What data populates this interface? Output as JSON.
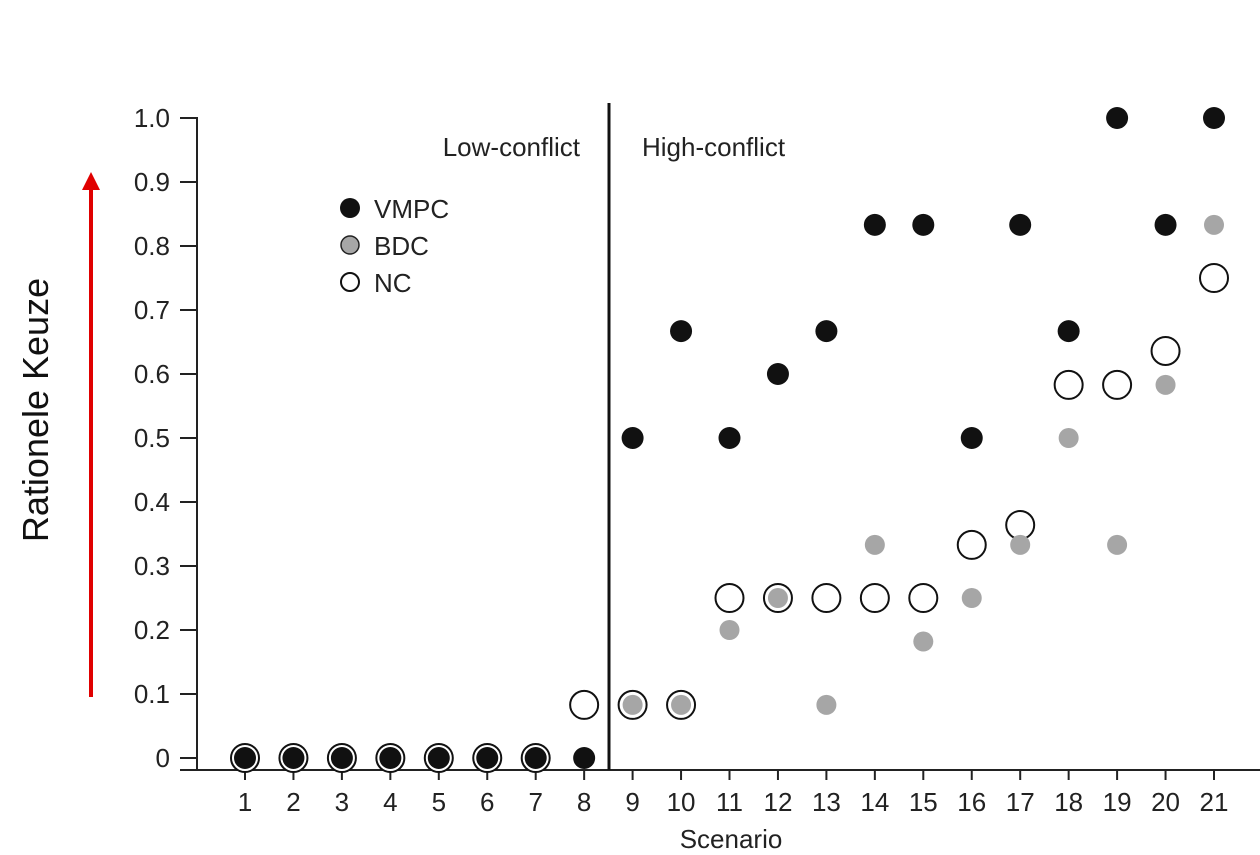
{
  "chart_data": {
    "type": "scatter",
    "xlabel": "Scenario",
    "ylabel": "Rationele Keuze",
    "x": [
      1,
      2,
      3,
      4,
      5,
      6,
      7,
      8,
      9,
      10,
      11,
      12,
      13,
      14,
      15,
      16,
      17,
      18,
      19,
      20,
      21
    ],
    "x_tick_labels": [
      "1",
      "2",
      "3",
      "4",
      "5",
      "6",
      "7",
      "8",
      "9",
      "10",
      "11",
      "12",
      "13",
      "14",
      "15",
      "16",
      "17",
      "18",
      "19",
      "20",
      "21"
    ],
    "y_tick_labels": [
      "0",
      "0.1",
      "0.2",
      "0.3",
      "0.4",
      "0.5",
      "0.6",
      "0.7",
      "0.8",
      "0.9",
      "1.0"
    ],
    "ylim": [
      0,
      1.0
    ],
    "grid": false,
    "legend_position": "top-left",
    "regions": [
      {
        "label": "Low-conflict",
        "x_range": [
          1,
          8
        ]
      },
      {
        "label": "High-conflict",
        "x_range": [
          9,
          21
        ]
      }
    ],
    "divider_between": [
      8,
      9
    ],
    "series": [
      {
        "name": "VMPC",
        "color": "#111111",
        "marker": "filled",
        "values": [
          0,
          0,
          0,
          0,
          0,
          0,
          0,
          0,
          0.5,
          0.667,
          0.5,
          0.6,
          0.667,
          0.833,
          0.833,
          0.5,
          0.833,
          0.667,
          1.0,
          0.833,
          1.0
        ]
      },
      {
        "name": "BDC",
        "color": "#a6a6a6",
        "marker": "filled",
        "values": [
          0,
          0,
          0,
          0,
          0,
          0,
          0,
          0,
          0.083,
          0.083,
          0.2,
          0.25,
          0.083,
          0.333,
          0.182,
          0.25,
          0.333,
          0.5,
          0.333,
          0.583,
          0.833
        ]
      },
      {
        "name": "NC",
        "color": "#111111",
        "marker": "open",
        "values": [
          0,
          0,
          0,
          0,
          0,
          0,
          0,
          0.083,
          0.083,
          0.083,
          0.25,
          0.25,
          0.25,
          0.25,
          0.25,
          0.333,
          0.364,
          0.583,
          0.583,
          0.636,
          0.75
        ]
      }
    ]
  },
  "colors": {
    "axis": "#222222",
    "arrow": "#e00000"
  }
}
